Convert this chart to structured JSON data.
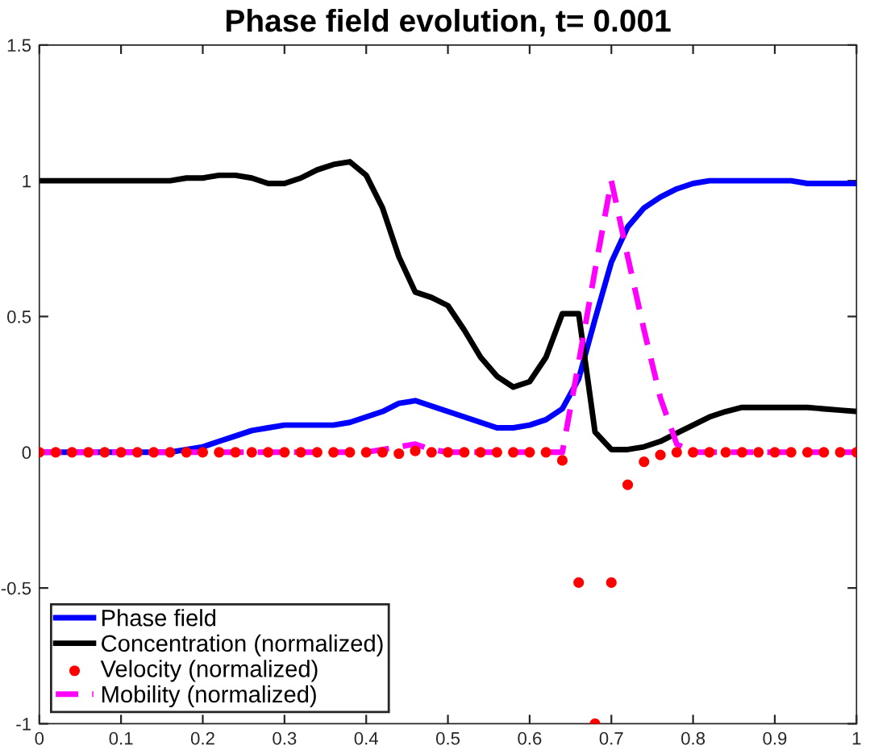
{
  "chart_data": {
    "type": "line",
    "title": "Phase field evolution, t= 0.001",
    "x": [
      0,
      0.02,
      0.04,
      0.06,
      0.08,
      0.1,
      0.12,
      0.14,
      0.16,
      0.18,
      0.2,
      0.22,
      0.24,
      0.26,
      0.28,
      0.3,
      0.32,
      0.34,
      0.36,
      0.38,
      0.4,
      0.42,
      0.44,
      0.46,
      0.48,
      0.5,
      0.52,
      0.54,
      0.56,
      0.58,
      0.6,
      0.62,
      0.64,
      0.66,
      0.68,
      0.7,
      0.72,
      0.74,
      0.76,
      0.78,
      0.8,
      0.82,
      0.84,
      0.86,
      0.88,
      0.9,
      0.92,
      0.94,
      0.96,
      0.98,
      1
    ],
    "series": [
      {
        "name": "Phase field",
        "color": "#0000ff",
        "line_style": "solid",
        "values": [
          0,
          0,
          0,
          0,
          0,
          0,
          0,
          0,
          0,
          0.01,
          0.02,
          0.04,
          0.06,
          0.08,
          0.09,
          0.1,
          0.1,
          0.1,
          0.1,
          0.11,
          0.13,
          0.15,
          0.18,
          0.19,
          0.17,
          0.15,
          0.13,
          0.11,
          0.09,
          0.09,
          0.1,
          0.12,
          0.16,
          0.27,
          0.49,
          0.7,
          0.83,
          0.9,
          0.94,
          0.97,
          0.99,
          1,
          1,
          1,
          1,
          1,
          1,
          0.99,
          0.99,
          0.99,
          0.99
        ]
      },
      {
        "name": "Concentration (normalized)",
        "color": "#000000",
        "line_style": "solid",
        "values": [
          1,
          1,
          1,
          1,
          1,
          1,
          1,
          1,
          1,
          1.01,
          1.01,
          1.02,
          1.02,
          1.01,
          0.99,
          0.99,
          1.01,
          1.04,
          1.06,
          1.07,
          1.02,
          0.9,
          0.72,
          0.59,
          0.57,
          0.54,
          0.45,
          0.35,
          0.28,
          0.24,
          0.26,
          0.35,
          0.51,
          0.51,
          0.075,
          0.01,
          0.01,
          0.02,
          0.04,
          0.07,
          0.1,
          0.13,
          0.15,
          0.165,
          0.165,
          0.165,
          0.165,
          0.165,
          0.16,
          0.155,
          0.15
        ]
      },
      {
        "name": "Velocity (normalized)",
        "type": "scatter",
        "color": "#ff0000",
        "marker": "circle",
        "values": [
          0,
          0,
          0,
          0,
          0,
          0,
          0,
          0,
          0,
          0,
          0,
          0,
          0,
          0,
          0,
          0,
          0,
          0,
          0,
          0,
          0,
          0,
          -0.005,
          0.005,
          0,
          0,
          0,
          0,
          0,
          0,
          0,
          0,
          -0.03,
          -0.48,
          -1,
          -0.48,
          -0.12,
          -0.035,
          -0.01,
          0,
          0,
          0,
          0,
          0,
          0,
          0,
          0,
          0,
          0,
          0,
          0
        ]
      },
      {
        "name": "Mobility (normalized)",
        "color": "#ff00ff",
        "line_style": "dashed",
        "values": [
          0,
          0,
          0,
          0,
          0,
          0,
          0,
          0,
          0,
          0,
          0,
          0,
          0,
          0,
          0,
          0,
          0,
          0,
          0,
          0,
          0,
          0.01,
          0.02,
          0.03,
          0.01,
          0,
          0,
          0,
          0,
          0,
          0,
          0,
          0,
          0.33,
          0.67,
          1,
          0.72,
          0.45,
          0.2,
          0.03,
          0,
          0,
          0,
          0,
          0,
          0,
          0,
          0,
          0,
          0,
          0
        ]
      }
    ],
    "xlim": [
      0,
      1
    ],
    "ylim": [
      -1,
      1.5
    ],
    "xticks": [
      0,
      0.1,
      0.2,
      0.3,
      0.4,
      0.5,
      0.6,
      0.7,
      0.8,
      0.9,
      1
    ],
    "yticks": [
      -1,
      -0.5,
      0,
      0.5,
      1,
      1.5
    ],
    "grid": false,
    "legend": "bottom left"
  }
}
